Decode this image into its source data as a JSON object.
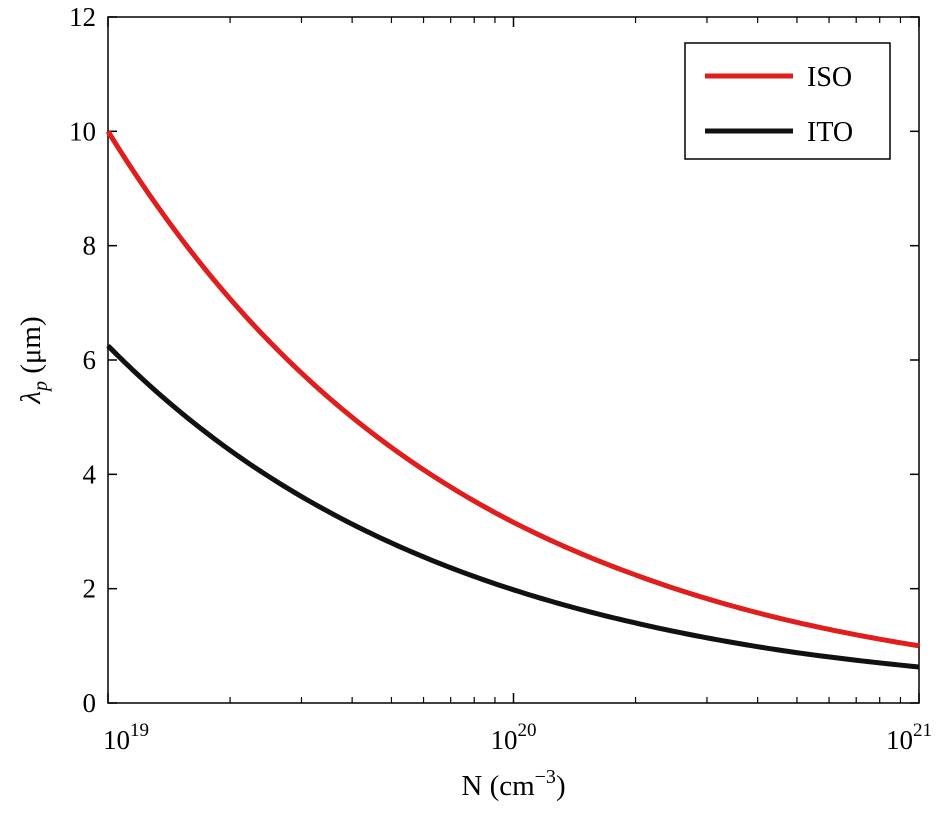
{
  "chart_data": {
    "type": "line",
    "x_scale": "log",
    "xlim": [
      1e+19,
      1e+21
    ],
    "ylim": [
      0,
      12
    ],
    "grid": false,
    "legend_position": "top-right",
    "xlabel": {
      "base": "N (cm",
      "sup": "−3",
      "close": ")"
    },
    "ylabel": {
      "symbol": "λ",
      "sub": "p",
      "unit": " (μm)"
    },
    "x_ticks": [
      {
        "value": 1e+19,
        "base": "10",
        "exp": "19"
      },
      {
        "value": 1e+20,
        "base": "10",
        "exp": "20"
      },
      {
        "value": 1e+21,
        "base": "10",
        "exp": "21"
      }
    ],
    "y_ticks": [
      {
        "value": 0,
        "label": "0"
      },
      {
        "value": 2,
        "label": "2"
      },
      {
        "value": 4,
        "label": "4"
      },
      {
        "value": 6,
        "label": "6"
      },
      {
        "value": 8,
        "label": "8"
      },
      {
        "value": 10,
        "label": "10"
      },
      {
        "value": 12,
        "label": "12"
      }
    ],
    "series": [
      {
        "name": "ISO",
        "color": "#e01e1e",
        "x": [
          1e+19,
          2e+19,
          5e+19,
          1e+20,
          2e+20,
          5e+20,
          1e+21
        ],
        "y": [
          10.0,
          7.07,
          4.47,
          3.16,
          2.24,
          1.41,
          1.0
        ]
      },
      {
        "name": "ITO",
        "color": "#111111",
        "x": [
          1e+19,
          2e+19,
          5e+19,
          1e+20,
          2e+20,
          5e+20,
          1e+21
        ],
        "y": [
          6.25,
          4.42,
          2.8,
          1.98,
          1.4,
          0.88,
          0.63
        ]
      }
    ]
  }
}
